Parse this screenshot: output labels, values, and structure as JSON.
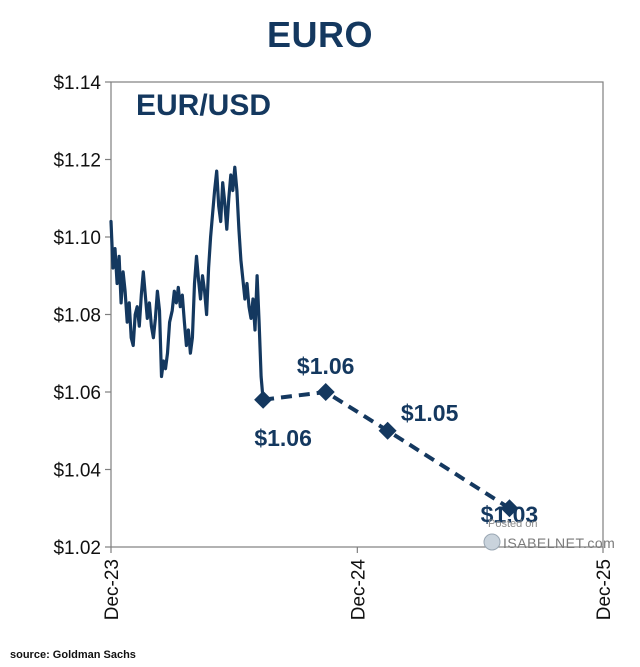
{
  "chart_data": {
    "type": "line",
    "title": "EURO",
    "inset_label": "EUR/USD",
    "ylim": [
      1.02,
      1.14
    ],
    "yticks": [
      {
        "value": 1.02,
        "label": "$1.02"
      },
      {
        "value": 1.04,
        "label": "$1.04"
      },
      {
        "value": 1.06,
        "label": "$1.06"
      },
      {
        "value": 1.08,
        "label": "$1.08"
      },
      {
        "value": 1.1,
        "label": "$1.10"
      },
      {
        "value": 1.12,
        "label": "$1.12"
      },
      {
        "value": 1.14,
        "label": "$1.14"
      }
    ],
    "xlim": [
      "2023-12-01",
      "2025-12-01"
    ],
    "xticks": [
      {
        "value": "2023-12-01",
        "label": "Dec-23"
      },
      {
        "value": "2024-12-01",
        "label": "Dec-24"
      },
      {
        "value": "2025-12-01",
        "label": "Dec-25"
      }
    ],
    "grid": false,
    "series": [
      {
        "color": "#14385f",
        "style": "solid",
        "points": [
          [
            "2023-12-01",
            1.104
          ],
          [
            "2023-12-04",
            1.092
          ],
          [
            "2023-12-07",
            1.097
          ],
          [
            "2023-12-10",
            1.088
          ],
          [
            "2023-12-13",
            1.095
          ],
          [
            "2023-12-16",
            1.083
          ],
          [
            "2023-12-19",
            1.091
          ],
          [
            "2023-12-22",
            1.086
          ],
          [
            "2023-12-25",
            1.078
          ],
          [
            "2023-12-28",
            1.083
          ],
          [
            "2023-12-31",
            1.074
          ],
          [
            "2024-01-03",
            1.072
          ],
          [
            "2024-01-06",
            1.08
          ],
          [
            "2024-01-09",
            1.082
          ],
          [
            "2024-01-12",
            1.077
          ],
          [
            "2024-01-15",
            1.085
          ],
          [
            "2024-01-18",
            1.091
          ],
          [
            "2024-01-21",
            1.085
          ],
          [
            "2024-01-24",
            1.079
          ],
          [
            "2024-01-27",
            1.083
          ],
          [
            "2024-01-30",
            1.077
          ],
          [
            "2024-02-02",
            1.074
          ],
          [
            "2024-02-05",
            1.079
          ],
          [
            "2024-02-08",
            1.086
          ],
          [
            "2024-02-11",
            1.081
          ],
          [
            "2024-02-14",
            1.064
          ],
          [
            "2024-02-17",
            1.068
          ],
          [
            "2024-02-20",
            1.066
          ],
          [
            "2024-02-23",
            1.07
          ],
          [
            "2024-02-26",
            1.078
          ],
          [
            "2024-03-01",
            1.081
          ],
          [
            "2024-03-04",
            1.086
          ],
          [
            "2024-03-07",
            1.083
          ],
          [
            "2024-03-10",
            1.087
          ],
          [
            "2024-03-13",
            1.082
          ],
          [
            "2024-03-16",
            1.085
          ],
          [
            "2024-03-19",
            1.078
          ],
          [
            "2024-03-22",
            1.072
          ],
          [
            "2024-03-25",
            1.076
          ],
          [
            "2024-03-28",
            1.07
          ],
          [
            "2024-03-31",
            1.074
          ],
          [
            "2024-04-03",
            1.088
          ],
          [
            "2024-04-06",
            1.095
          ],
          [
            "2024-04-09",
            1.089
          ],
          [
            "2024-04-12",
            1.084
          ],
          [
            "2024-04-15",
            1.09
          ],
          [
            "2024-04-18",
            1.086
          ],
          [
            "2024-04-21",
            1.08
          ],
          [
            "2024-04-24",
            1.092
          ],
          [
            "2024-04-27",
            1.1
          ],
          [
            "2024-04-30",
            1.106
          ],
          [
            "2024-05-03",
            1.112
          ],
          [
            "2024-05-06",
            1.117
          ],
          [
            "2024-05-09",
            1.108
          ],
          [
            "2024-05-12",
            1.104
          ],
          [
            "2024-05-15",
            1.114
          ],
          [
            "2024-05-18",
            1.109
          ],
          [
            "2024-05-21",
            1.102
          ],
          [
            "2024-05-24",
            1.11
          ],
          [
            "2024-05-27",
            1.116
          ],
          [
            "2024-05-30",
            1.112
          ],
          [
            "2024-06-02",
            1.118
          ],
          [
            "2024-06-05",
            1.112
          ],
          [
            "2024-06-08",
            1.102
          ],
          [
            "2024-06-11",
            1.094
          ],
          [
            "2024-06-14",
            1.089
          ],
          [
            "2024-06-17",
            1.084
          ],
          [
            "2024-06-20",
            1.088
          ],
          [
            "2024-06-23",
            1.082
          ],
          [
            "2024-06-26",
            1.079
          ],
          [
            "2024-06-29",
            1.084
          ],
          [
            "2024-07-02",
            1.076
          ],
          [
            "2024-07-05",
            1.09
          ],
          [
            "2024-07-08",
            1.078
          ],
          [
            "2024-07-11",
            1.064
          ],
          [
            "2024-07-14",
            1.058
          ]
        ]
      },
      {
        "color": "#14385f",
        "style": "dashed",
        "markers": "diamond",
        "points": [
          [
            "2024-07-14",
            1.058,
            "$1.06"
          ],
          [
            "2024-10-15",
            1.06,
            "$1.06"
          ],
          [
            "2025-01-15",
            1.05,
            "$1.05"
          ],
          [
            "2025-07-15",
            1.03,
            "$1.03"
          ]
        ]
      }
    ]
  },
  "source": "source: Goldman Sachs",
  "watermark": {
    "line1": "Posted on",
    "line2": "ISABELNET.com"
  }
}
